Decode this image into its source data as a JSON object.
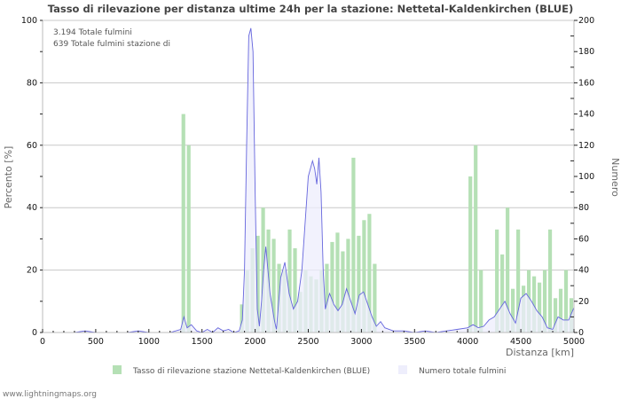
{
  "chart_data": {
    "type": "bar+area",
    "title": "Tasso di rilevazione per distanza ultime 24h per la stazione: Nettetal-Kaldenkirchen (BLUE)",
    "xlabel": "Distanza   [km]",
    "ylabel_left": "Percento   [%]",
    "ylabel_right": "Numero",
    "xlim": [
      0,
      5000
    ],
    "ylim_left": [
      0,
      100
    ],
    "ylim_right": [
      0,
      200
    ],
    "x_ticks": [
      0,
      500,
      1000,
      1500,
      2000,
      2500,
      3000,
      3500,
      4000,
      4500,
      5000
    ],
    "y_ticks_left": [
      0,
      20,
      40,
      60,
      80,
      100
    ],
    "y_ticks_right": [
      0,
      20,
      40,
      60,
      80,
      100,
      120,
      140,
      160,
      180,
      200
    ],
    "grid": true,
    "bin_km": 50,
    "annotations": [
      "3.194 Totale fulmini",
      "639 Totale fulmini stazione di"
    ],
    "legend": {
      "position": "bottom",
      "entries": [
        {
          "label": "Tasso di rilevazione stazione Nettetal-Kaldenkirchen (BLUE)",
          "color": "#b5e0b5"
        },
        {
          "label": "Numero totale fulmini",
          "color": "#eeeefc"
        }
      ]
    },
    "series": [
      {
        "name": "Tasso di rilevazione stazione Nettetal-Kaldenkirchen (BLUE)",
        "axis": "left",
        "kind": "bar",
        "color": "#b5e0b5",
        "x": [
          1325,
          1375,
          1875,
          1925,
          1975,
          2025,
          2075,
          2125,
          2175,
          2225,
          2275,
          2325,
          2375,
          2425,
          2475,
          2525,
          2575,
          2625,
          2675,
          2725,
          2775,
          2825,
          2875,
          2925,
          2975,
          3025,
          3075,
          3125,
          4025,
          4075,
          4125,
          4275,
          4325,
          4375,
          4425,
          4475,
          4525,
          4575,
          4625,
          4675,
          4725,
          4775,
          4825,
          4875,
          4925,
          4975
        ],
        "values": [
          70,
          60,
          9,
          20,
          27,
          31,
          40,
          33,
          30,
          22,
          20,
          33,
          27,
          13,
          20,
          18,
          17,
          20,
          22,
          29,
          32,
          26,
          30,
          56,
          31,
          36,
          38,
          22,
          50,
          60,
          20,
          33,
          25,
          40,
          14,
          33,
          15,
          20,
          18,
          16,
          20,
          33,
          11,
          14,
          20,
          11
        ]
      },
      {
        "name": "Numero totale fulmini",
        "axis": "right",
        "kind": "area",
        "color": "#6666dd",
        "fill": "#eeeefc",
        "x": [
          0,
          100,
          200,
          300,
          400,
          500,
          600,
          700,
          800,
          900,
          1000,
          1100,
          1200,
          1300,
          1330,
          1360,
          1400,
          1450,
          1500,
          1550,
          1600,
          1650,
          1700,
          1750,
          1800,
          1850,
          1880,
          1900,
          1920,
          1940,
          1960,
          1980,
          2000,
          2020,
          2040,
          2060,
          2080,
          2100,
          2140,
          2180,
          2200,
          2240,
          2280,
          2320,
          2360,
          2400,
          2440,
          2480,
          2500,
          2540,
          2560,
          2580,
          2600,
          2620,
          2640,
          2660,
          2680,
          2700,
          2740,
          2780,
          2820,
          2860,
          2900,
          2940,
          2980,
          3020,
          3060,
          3100,
          3140,
          3180,
          3220,
          3300,
          3400,
          3500,
          3600,
          3700,
          3800,
          3900,
          4000,
          4050,
          4100,
          4150,
          4200,
          4250,
          4300,
          4350,
          4400,
          4450,
          4500,
          4550,
          4600,
          4650,
          4700,
          4750,
          4800,
          4850,
          4900,
          4950,
          5000
        ],
        "values": [
          0,
          0,
          0,
          0,
          1,
          0,
          0,
          0,
          0,
          1,
          0,
          0,
          0,
          2,
          10,
          3,
          5,
          1,
          0,
          2,
          0,
          3,
          1,
          2,
          0,
          1,
          8,
          40,
          120,
          190,
          195,
          180,
          90,
          15,
          4,
          20,
          40,
          55,
          25,
          8,
          2,
          35,
          45,
          25,
          15,
          20,
          40,
          80,
          100,
          110,
          105,
          95,
          112,
          90,
          40,
          15,
          20,
          25,
          18,
          14,
          18,
          28,
          20,
          12,
          24,
          26,
          18,
          10,
          4,
          7,
          3,
          1,
          1,
          0,
          1,
          0,
          1,
          2,
          3,
          5,
          3,
          4,
          8,
          10,
          15,
          20,
          12,
          6,
          22,
          25,
          20,
          14,
          10,
          3,
          2,
          10,
          8,
          8,
          16
        ]
      }
    ]
  },
  "labels": {
    "title": "Tasso di rilevazione per distanza ultime 24h per la stazione: Nettetal-Kaldenkirchen (BLUE)",
    "info_line_1": "3.194 Totale fulmini",
    "info_line_2": "639 Totale fulmini stazione di",
    "xlabel": "Distanza   [km]",
    "ylabel_left": "Percento   [%]",
    "ylabel_right": "Numero",
    "legend_bar": "Tasso di rilevazione stazione Nettetal-Kaldenkirchen (BLUE)",
    "legend_area": "Numero totale fulmini",
    "footer": "www.lightningmaps.org"
  },
  "colors": {
    "bar": "#b5e0b5",
    "area_fill": "#eeeefc",
    "line": "#6666dd",
    "grid": "#c8c8c8",
    "axis": "#bbbbbb"
  }
}
